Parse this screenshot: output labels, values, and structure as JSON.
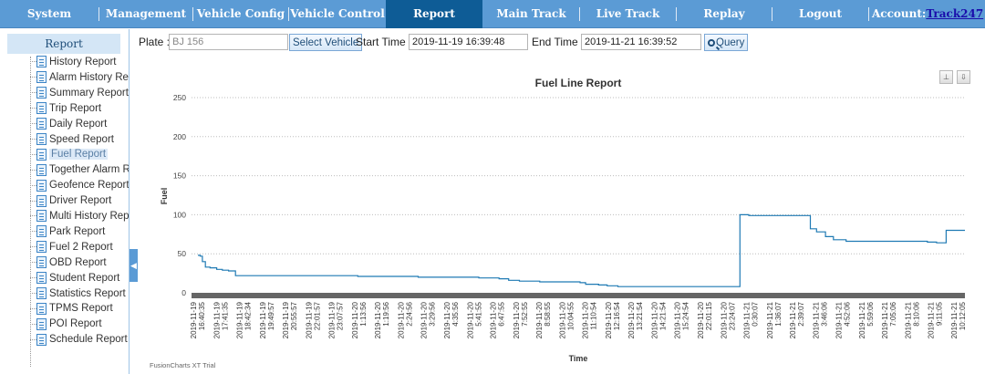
{
  "nav": {
    "items": [
      {
        "label": "System"
      },
      {
        "label": "Management"
      },
      {
        "label": "Vehicle Config"
      },
      {
        "label": "Vehicle Control"
      },
      {
        "label": "Report"
      },
      {
        "label": "Main Track"
      },
      {
        "label": "Live Track"
      },
      {
        "label": "Replay"
      },
      {
        "label": "Logout"
      }
    ],
    "account_label": "Account:",
    "account_name": "Track247",
    "active_color": "#0e5c96",
    "bar_color": "#5b9bd5"
  },
  "sidebar": {
    "header": "Report",
    "items": [
      {
        "label": "History Report"
      },
      {
        "label": "Alarm History Re"
      },
      {
        "label": "Summary Report"
      },
      {
        "label": "Trip Report"
      },
      {
        "label": "Daily Report"
      },
      {
        "label": "Speed Report"
      },
      {
        "label": "Fuel Report"
      },
      {
        "label": "Together Alarm R"
      },
      {
        "label": "Geofence Report"
      },
      {
        "label": "Driver Report"
      },
      {
        "label": "Multi History Rep"
      },
      {
        "label": "Park Report"
      },
      {
        "label": "Fuel 2 Report"
      },
      {
        "label": "OBD Report"
      },
      {
        "label": "Student Report"
      },
      {
        "label": "Statistics Report"
      },
      {
        "label": "TPMS Report"
      },
      {
        "label": "POI Report"
      },
      {
        "label": "Schedule Report"
      }
    ],
    "selected": "Fuel Report"
  },
  "toolbar": {
    "plate_label": "Plate :",
    "plate_value": "BJ 156",
    "select_vehicle": "Select Vehicle",
    "start_label": "Start Time :",
    "start_value": "2019-11-19 16:39:48",
    "end_label": "End Time :",
    "end_value": "2019-11-21 16:39:52",
    "query": "Query"
  },
  "chart_data": {
    "type": "line",
    "title": "Fuel Line Report",
    "xlabel": "Time",
    "ylabel": "Fuel",
    "ylim": [
      0,
      250
    ],
    "yticks": [
      0,
      50,
      100,
      150,
      200,
      250
    ],
    "grid": true,
    "line_color": "#1f7ab4",
    "watermark": "FusionCharts XT Trial",
    "x_tick_labels": [
      [
        "2019-11-19",
        "16:40:35"
      ],
      [
        "2019-11-19",
        "17:41:35"
      ],
      [
        "2019-11-19",
        "18:42:34"
      ],
      [
        "2019-11-19",
        "19:49:57"
      ],
      [
        "2019-11-19",
        "20:55:57"
      ],
      [
        "2019-11-19",
        "22:01:57"
      ],
      [
        "2019-11-19",
        "23:07:57"
      ],
      [
        "2019-11-20",
        "1:13:56"
      ],
      [
        "2019-11-20",
        "1:19:56"
      ],
      [
        "2019-11-20",
        "2:24:56"
      ],
      [
        "2019-11-20",
        "3:29:56"
      ],
      [
        "2019-11-20",
        "4:35:56"
      ],
      [
        "2019-11-20",
        "5:41:55"
      ],
      [
        "2019-11-20",
        "6:47:55"
      ],
      [
        "2019-11-20",
        "7:52:55"
      ],
      [
        "2019-11-20",
        "8:58:55"
      ],
      [
        "2019-11-20",
        "10:04:55"
      ],
      [
        "2019-11-20",
        "11:10:54"
      ],
      [
        "2019-11-20",
        "12:16:54"
      ],
      [
        "2019-11-20",
        "13:21:54"
      ],
      [
        "2019-11-20",
        "14:21:54"
      ],
      [
        "2019-11-20",
        "15:24:54"
      ],
      [
        "2019-11-20",
        "22:01:15"
      ],
      [
        "2019-11-20",
        "23:24:07"
      ],
      [
        "2019-11-21",
        "0:30:07"
      ],
      [
        "2019-11-21",
        "1:36:07"
      ],
      [
        "2019-11-21",
        "2:39:07"
      ],
      [
        "2019-11-21",
        "3:46:06"
      ],
      [
        "2019-11-21",
        "4:52:06"
      ],
      [
        "2019-11-21",
        "5:59:06"
      ],
      [
        "2019-11-21",
        "7:05:06"
      ],
      [
        "2019-11-21",
        "8:10:06"
      ],
      [
        "2019-11-21",
        "9:11:05"
      ],
      [
        "2019-11-21",
        "10:12:05"
      ]
    ],
    "x": [
      "2019-11-19 16:40:35",
      "2019-11-19 16:48",
      "2019-11-19 16:55",
      "2019-11-19 17:05",
      "2019-11-19 17:20",
      "2019-11-19 17:41:35",
      "2019-11-19 18:00",
      "2019-11-19 18:20",
      "2019-11-19 18:42:34",
      "2019-11-19 19:00",
      "2019-11-19 19:49:57",
      "2019-11-19 20:55:57",
      "2019-11-19 22:01:57",
      "2019-11-19 23:07:57",
      "2019-11-20 1:19:56",
      "2019-11-20 2:24:56",
      "2019-11-20 3:29:56",
      "2019-11-20 4:35:56",
      "2019-11-20 5:41:55",
      "2019-11-20 6:47:55",
      "2019-11-20 7:52:55",
      "2019-11-20 8:30",
      "2019-11-20 8:58:55",
      "2019-11-20 9:30",
      "2019-11-20 10:04:55",
      "2019-11-20 11:10:54",
      "2019-11-20 12:16:54",
      "2019-11-20 13:21:54",
      "2019-11-20 13:40",
      "2019-11-20 14:21:54",
      "2019-11-20 14:50",
      "2019-11-20 15:24:54",
      "2019-11-20 22:01:15",
      "2019-11-20 22:30",
      "2019-11-20 23:24:07",
      "2019-11-21 0:30:07",
      "2019-11-21 1:36:07",
      "2019-11-21 1:50",
      "2019-11-21 2:10",
      "2019-11-21 2:39:07",
      "2019-11-21 3:05",
      "2019-11-21 3:46:06",
      "2019-11-21 4:52:06",
      "2019-11-21 5:59:06",
      "2019-11-21 7:05:06",
      "2019-11-21 8:10:06",
      "2019-11-21 8:40",
      "2019-11-21 9:11:05",
      "2019-11-21 10:12:05"
    ],
    "series": [
      {
        "values": [
          48,
          47,
          40,
          33,
          32,
          30,
          29,
          28,
          22,
          22,
          22,
          22,
          22,
          22,
          21,
          21,
          21,
          20,
          20,
          20,
          19,
          19,
          18,
          16,
          15,
          14,
          14,
          13,
          11,
          10,
          9,
          8,
          100,
          99,
          99,
          99,
          99,
          82,
          78,
          72,
          68,
          66,
          66,
          66,
          66,
          65,
          64,
          80,
          80
        ]
      }
    ]
  }
}
